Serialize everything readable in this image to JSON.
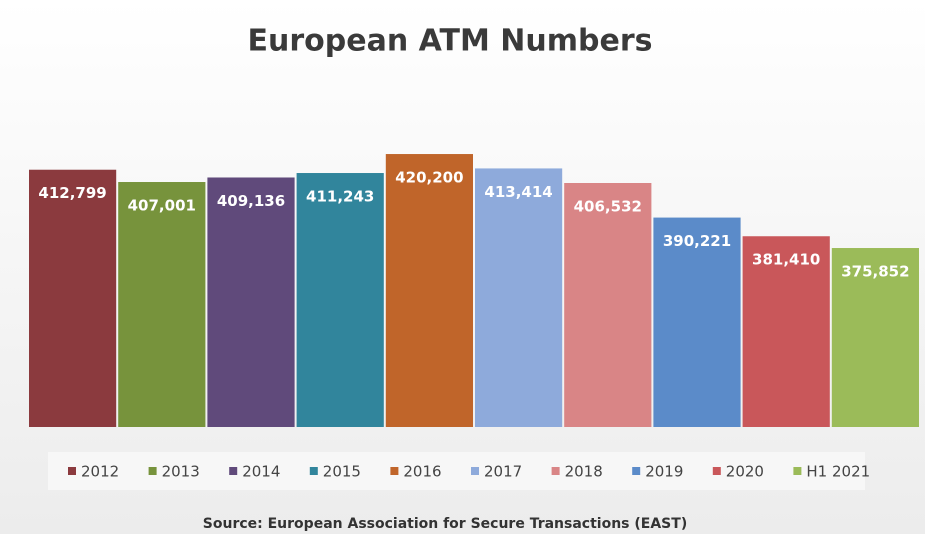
{
  "chart_data": {
    "type": "bar",
    "title": "European ATM Numbers",
    "source": "Source:  European Association for Secure Transactions (EAST)",
    "categories": [
      "2012",
      "2013",
      "2014",
      "2015",
      "2016",
      "2017",
      "2018",
      "2019",
      "2020",
      "H1 2021"
    ],
    "values": [
      412799,
      407001,
      409136,
      411243,
      420200,
      413414,
      406532,
      390221,
      381410,
      375852
    ],
    "value_labels": [
      "412,799",
      "407,001",
      "409,136",
      "411,243",
      "420,200",
      "413,414",
      "406,532",
      "390,221",
      "381,410",
      "375,852"
    ],
    "colors": [
      "#8b3a3e",
      "#77933c",
      "#604a7b",
      "#31859c",
      "#c0652a",
      "#8eaadb",
      "#d98586",
      "#5b8bc9",
      "#c9575a",
      "#9bbb59"
    ],
    "ylim": [
      291400,
      445700
    ],
    "legend": "bottom"
  }
}
